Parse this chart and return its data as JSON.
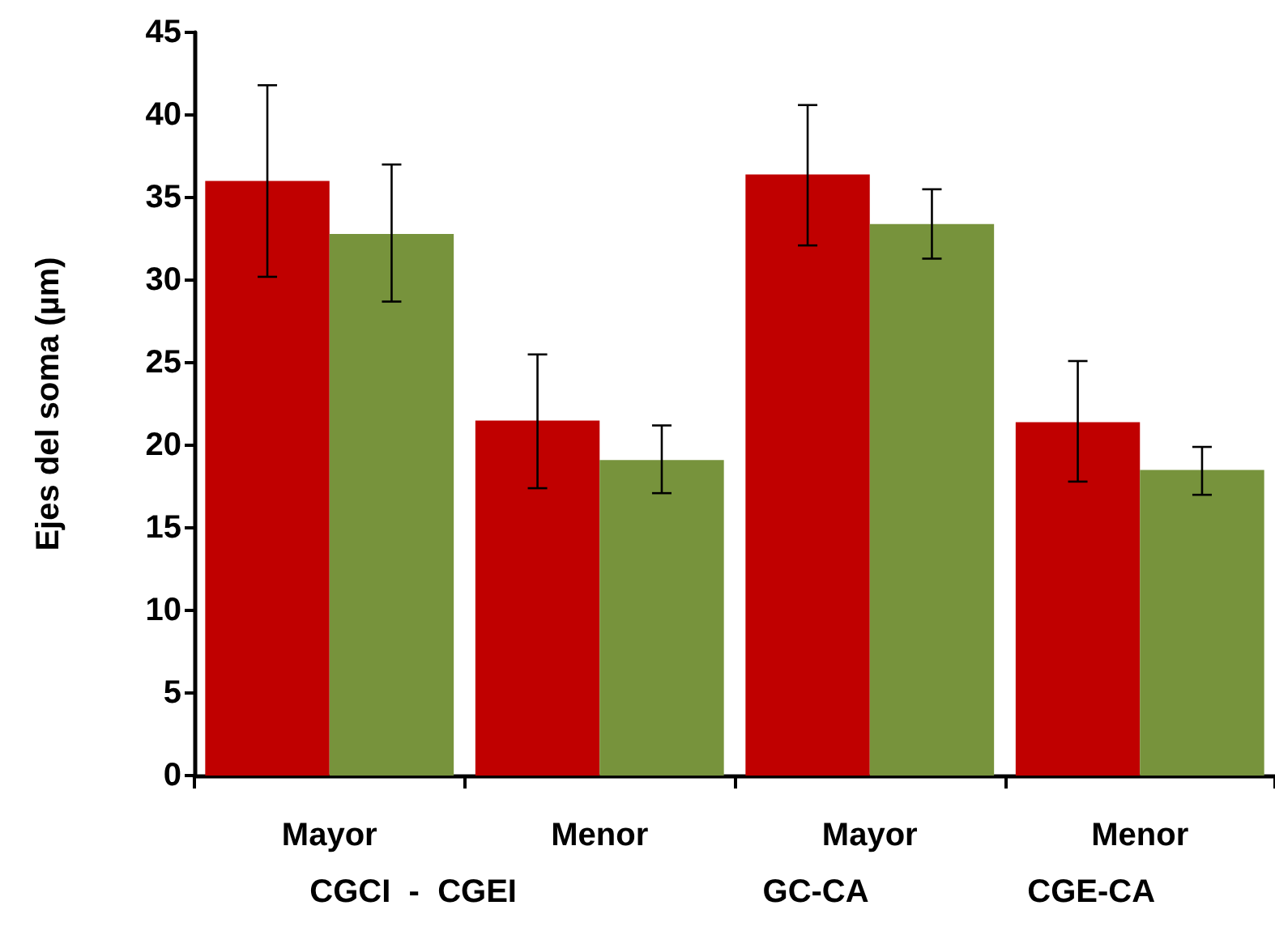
{
  "chart_data": {
    "type": "bar",
    "ylabel": "Ejes del soma (µm)",
    "categories": [
      "Mayor",
      "Menor",
      "Mayor",
      "Menor"
    ],
    "series": [
      {
        "color": "#c00000",
        "values": [
          36.0,
          21.5,
          36.4,
          21.4
        ],
        "errors": [
          [
            30.2,
            41.8
          ],
          [
            17.4,
            25.5
          ],
          [
            32.1,
            40.6
          ],
          [
            17.8,
            25.1
          ]
        ]
      },
      {
        "color": "#77933c",
        "values": [
          32.8,
          19.1,
          33.4,
          18.5
        ],
        "errors": [
          [
            28.7,
            37.0
          ],
          [
            17.1,
            21.2
          ],
          [
            31.3,
            35.5
          ],
          [
            17.0,
            19.9
          ]
        ]
      }
    ],
    "ylim": [
      0,
      45
    ],
    "yticks": [
      0,
      5,
      10,
      15,
      20,
      25,
      30,
      35,
      40,
      45
    ],
    "grid": false,
    "annotations": [
      "CGCI  -  CGEI",
      "GC-CA",
      "CGE-CA"
    ]
  }
}
